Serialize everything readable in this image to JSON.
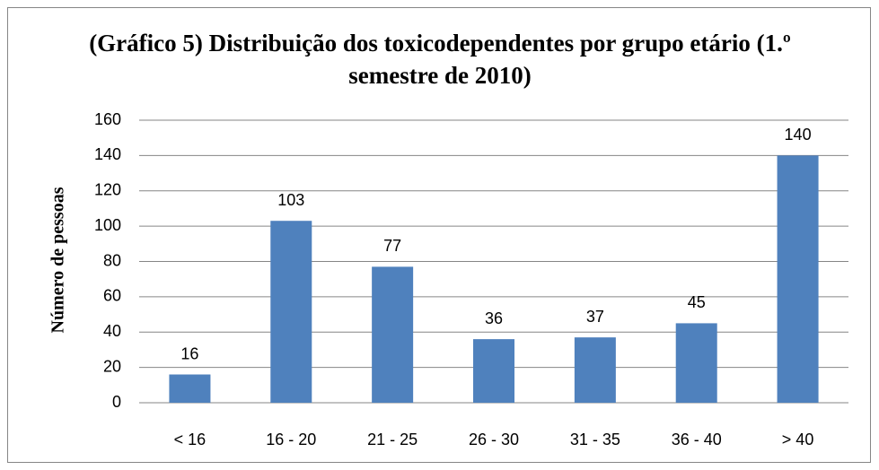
{
  "chart_data": {
    "type": "bar",
    "title": "(Gráfico 5) Distribuição dos toxicodependentes por grupo etário (1.º semestre de 2010)",
    "y_label": "Número de pessoas",
    "categories": [
      "< 16",
      "16 - 20",
      "21 - 25",
      "26 - 30",
      "31 - 35",
      "36 - 40",
      "> 40"
    ],
    "values": [
      16,
      103,
      77,
      36,
      37,
      45,
      140
    ],
    "color": "#4f81bd",
    "ylim": [
      0,
      160
    ],
    "yticks": [
      0,
      20,
      40,
      60,
      80,
      100,
      120,
      140,
      160
    ],
    "grid": true
  }
}
